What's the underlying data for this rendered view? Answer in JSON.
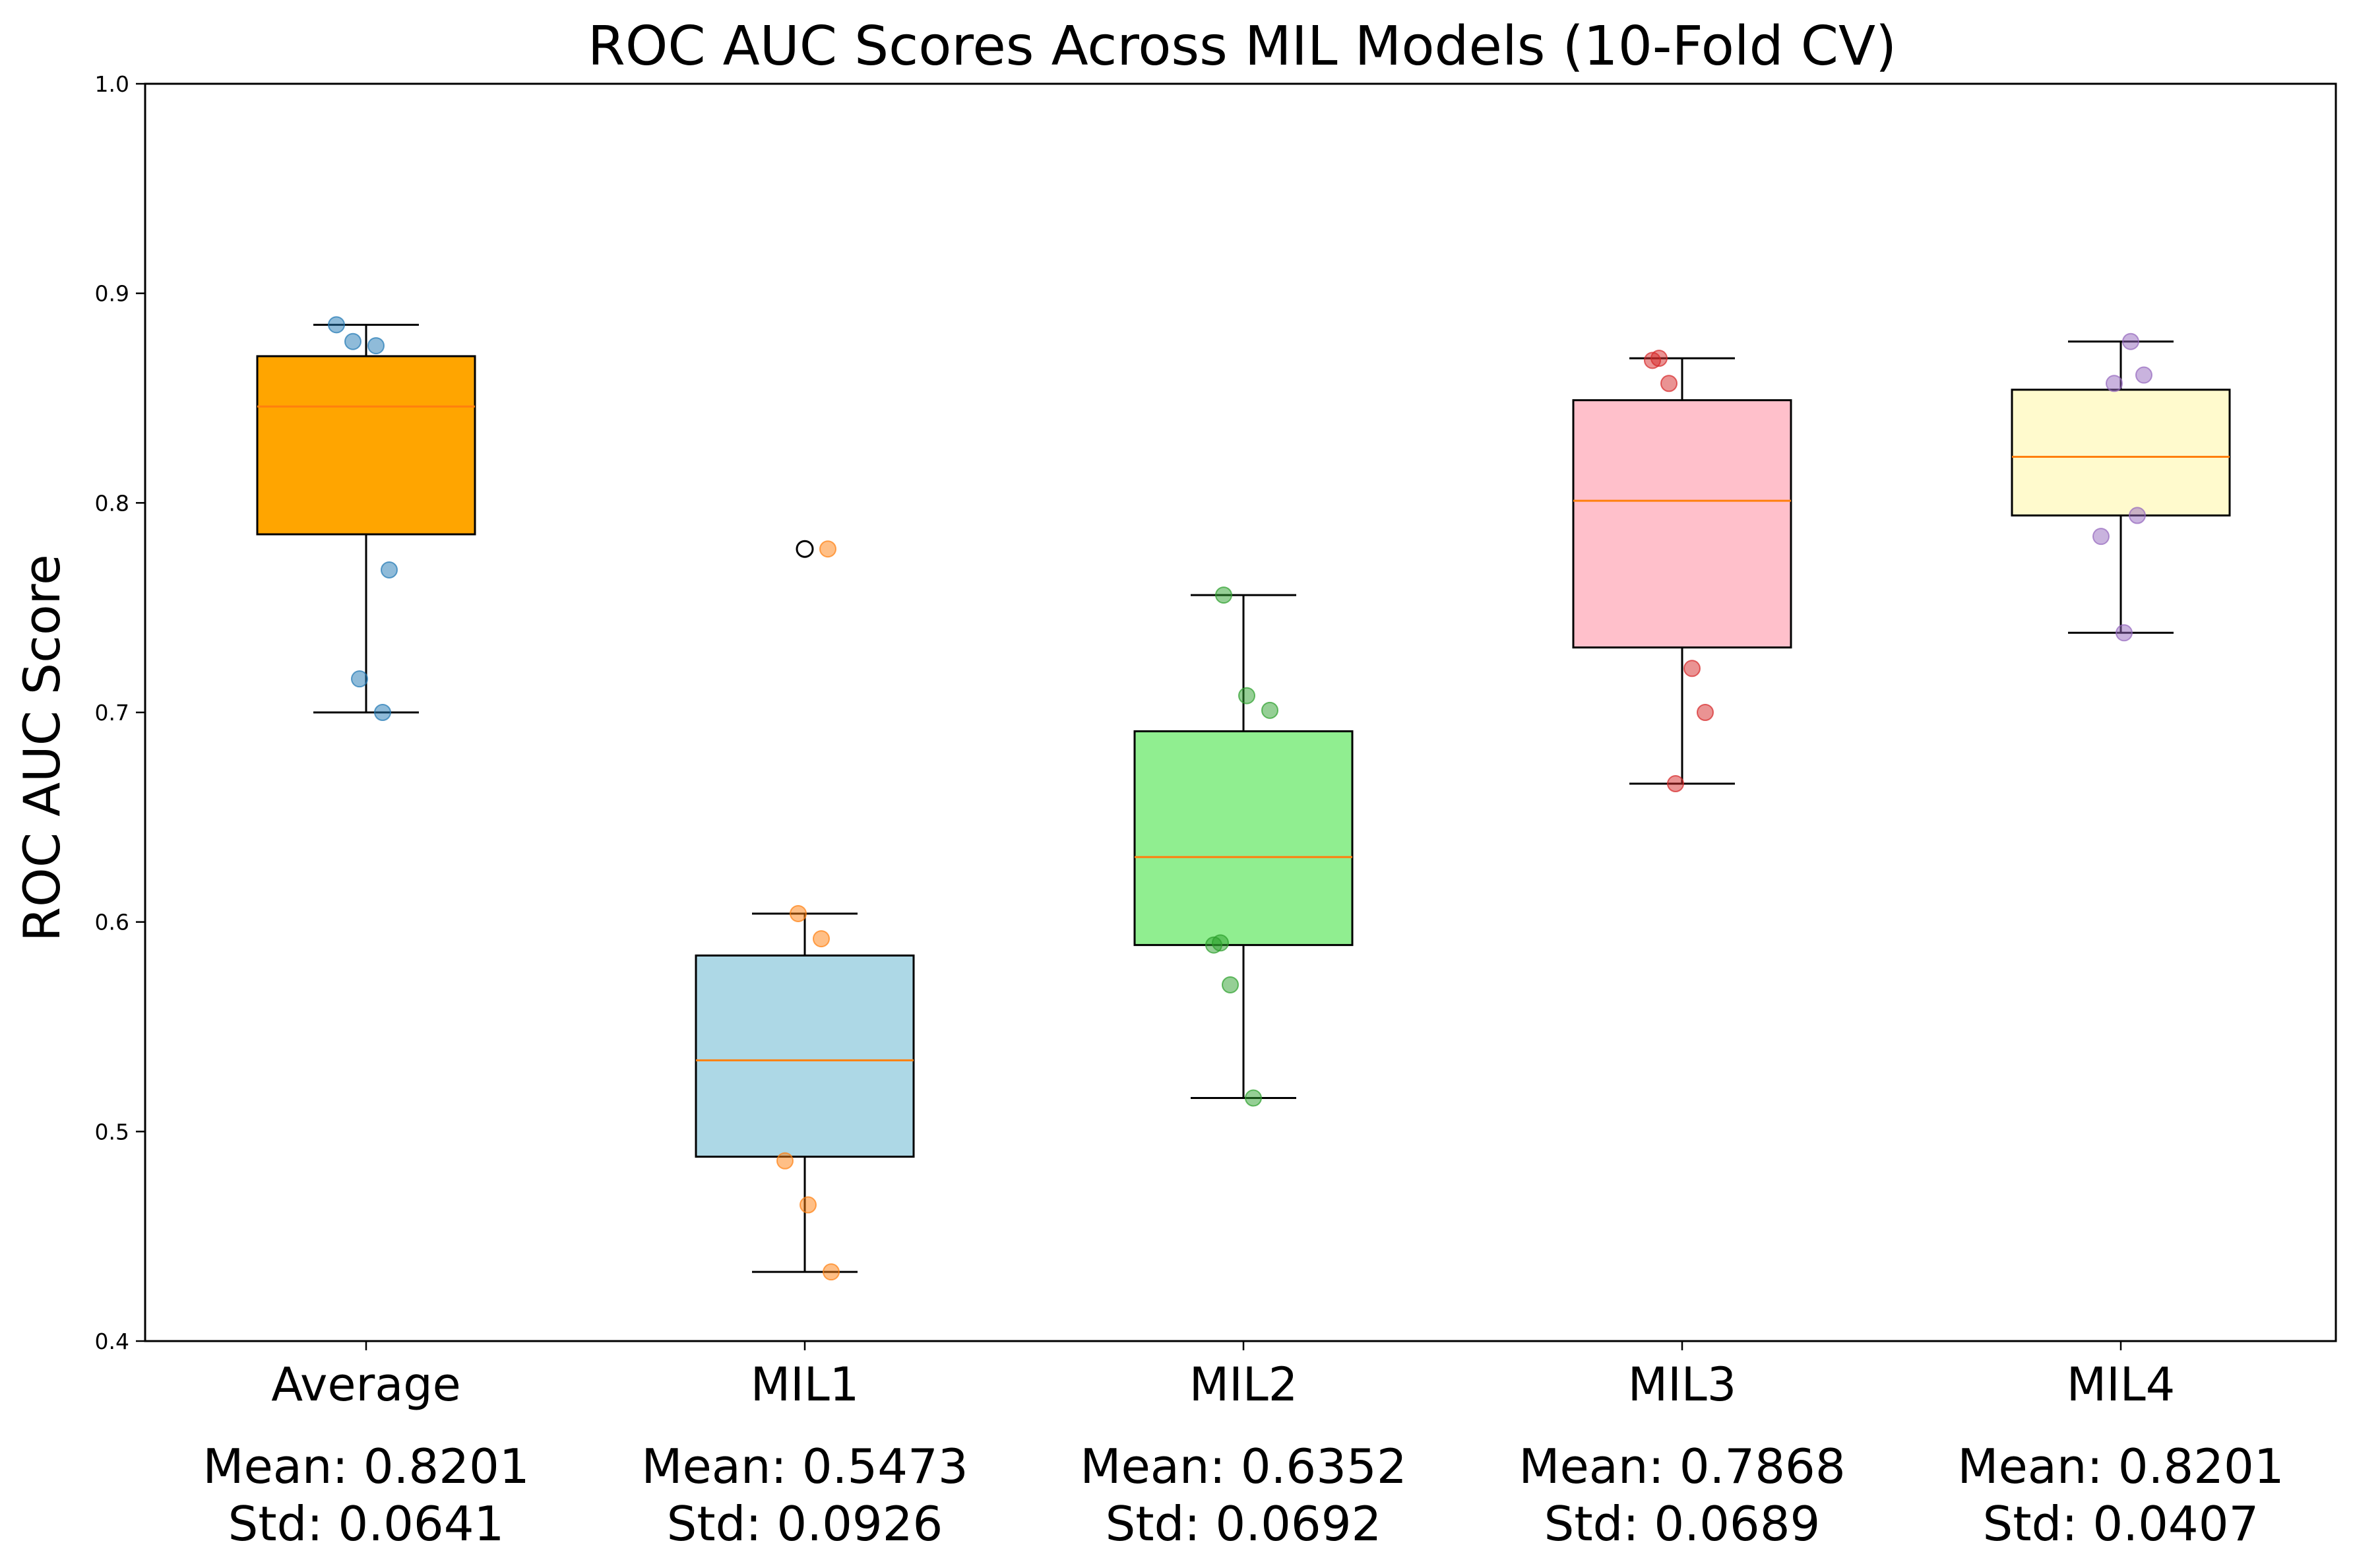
{
  "chart_data": {
    "type": "box",
    "title": "ROC AUC Scores Across MIL Models (10-Fold CV)",
    "xlabel": "",
    "ylabel": "ROC AUC Score",
    "ylim": [
      0.4,
      1.0
    ],
    "yticks": [
      "0.4",
      "0.5",
      "0.6",
      "0.7",
      "0.8",
      "0.9",
      "1.0"
    ],
    "grid": false,
    "categories": [
      "Average",
      "MIL1",
      "MIL2",
      "MIL3",
      "MIL4"
    ],
    "median_color": "#ff7f0e",
    "boxes": [
      {
        "name": "Average",
        "fill": "#ffa500",
        "point_color": "#1f77b4",
        "q1": 0.785,
        "median": 0.846,
        "q3": 0.87,
        "whisker_low": 0.7,
        "whisker_high": 0.885,
        "outliers": [],
        "points": [
          0.885,
          0.877,
          0.875,
          0.768,
          0.716,
          0.7
        ],
        "mean_label": "Mean: 0.8201",
        "std_label": "Std: 0.0641"
      },
      {
        "name": "MIL1",
        "fill": "#add8e6",
        "point_color": "#ff7f0e",
        "q1": 0.488,
        "median": 0.534,
        "q3": 0.584,
        "whisker_low": 0.433,
        "whisker_high": 0.604,
        "outliers": [
          0.778
        ],
        "points": [
          0.778,
          0.604,
          0.592,
          0.486,
          0.465,
          0.433
        ],
        "mean_label": "Mean: 0.5473",
        "std_label": "Std: 0.0926"
      },
      {
        "name": "MIL2",
        "fill": "#90ee90",
        "point_color": "#2ca02c",
        "q1": 0.589,
        "median": 0.631,
        "q3": 0.691,
        "whisker_low": 0.516,
        "whisker_high": 0.756,
        "outliers": [],
        "points": [
          0.756,
          0.708,
          0.701,
          0.59,
          0.589,
          0.57,
          0.516
        ],
        "mean_label": "Mean: 0.6352",
        "std_label": "Std: 0.0692"
      },
      {
        "name": "MIL3",
        "fill": "#ffc0cb",
        "point_color": "#d62728",
        "q1": 0.731,
        "median": 0.801,
        "q3": 0.849,
        "whisker_low": 0.666,
        "whisker_high": 0.869,
        "outliers": [],
        "points": [
          0.869,
          0.868,
          0.857,
          0.721,
          0.7,
          0.666
        ],
        "mean_label": "Mean: 0.7868",
        "std_label": "Std: 0.0689"
      },
      {
        "name": "MIL4",
        "fill": "#fffacd",
        "point_color": "#9467bd",
        "q1": 0.794,
        "median": 0.822,
        "q3": 0.854,
        "whisker_low": 0.738,
        "whisker_high": 0.877,
        "outliers": [],
        "points": [
          0.877,
          0.861,
          0.857,
          0.794,
          0.784,
          0.738
        ],
        "mean_label": "Mean: 0.8201",
        "std_label": "Std: 0.0407"
      }
    ]
  }
}
